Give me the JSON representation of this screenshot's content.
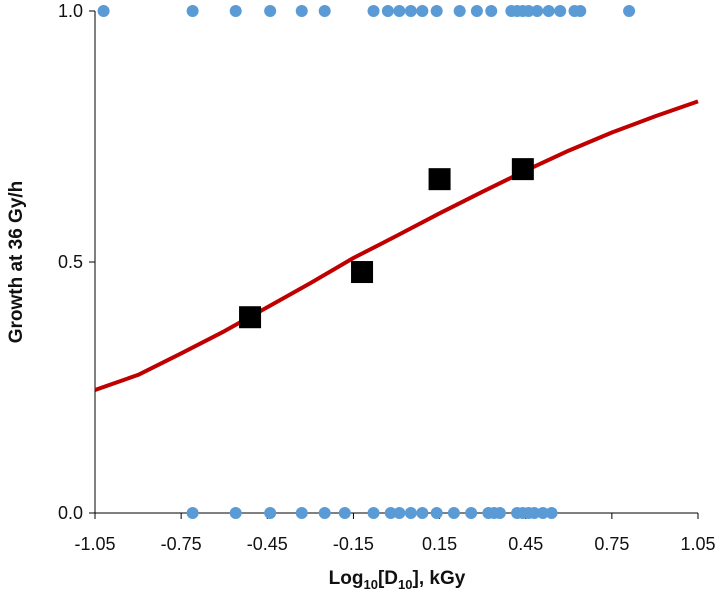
{
  "chart_data": {
    "type": "scatter",
    "xlabel": {
      "main": "Log",
      "sub1": "10",
      "mid": "[D",
      "sub2": "10",
      "end": "], kGy"
    },
    "ylabel": "Growth at 36 Gy/h",
    "xlim": [
      -1.05,
      1.05
    ],
    "ylim": [
      0.0,
      1.0
    ],
    "xticks": [
      "-1.05",
      "-0.75",
      "-0.45",
      "-0.15",
      "0.15",
      "0.45",
      "0.75",
      "1.05"
    ],
    "yticks": [
      "0.0",
      "0.5",
      "1.0"
    ],
    "grid": false,
    "series": [
      {
        "kind": "binary-points",
        "color": "#5b9bd5",
        "points": [
          [
            -1.02,
            1
          ],
          [
            -0.71,
            1
          ],
          [
            -0.56,
            1
          ],
          [
            -0.44,
            1
          ],
          [
            -0.33,
            1
          ],
          [
            -0.25,
            1
          ],
          [
            -0.08,
            1
          ],
          [
            -0.03,
            1
          ],
          [
            0.01,
            1
          ],
          [
            0.05,
            1
          ],
          [
            0.09,
            1
          ],
          [
            0.14,
            1
          ],
          [
            0.22,
            1
          ],
          [
            0.28,
            1
          ],
          [
            0.33,
            1
          ],
          [
            0.4,
            1
          ],
          [
            0.42,
            1
          ],
          [
            0.44,
            1
          ],
          [
            0.46,
            1
          ],
          [
            0.49,
            1
          ],
          [
            0.53,
            1
          ],
          [
            0.57,
            1
          ],
          [
            0.62,
            1
          ],
          [
            0.64,
            1
          ],
          [
            0.81,
            1
          ],
          [
            -0.71,
            0
          ],
          [
            -0.56,
            0
          ],
          [
            -0.44,
            0
          ],
          [
            -0.33,
            0
          ],
          [
            -0.25,
            0
          ],
          [
            -0.18,
            0
          ],
          [
            -0.08,
            0
          ],
          [
            -0.02,
            0
          ],
          [
            0.01,
            0
          ],
          [
            0.05,
            0
          ],
          [
            0.09,
            0
          ],
          [
            0.14,
            0
          ],
          [
            0.2,
            0
          ],
          [
            0.26,
            0
          ],
          [
            0.32,
            0
          ],
          [
            0.34,
            0
          ],
          [
            0.36,
            0
          ],
          [
            0.42,
            0
          ],
          [
            0.44,
            0
          ],
          [
            0.46,
            0
          ],
          [
            0.48,
            0
          ],
          [
            0.51,
            0
          ],
          [
            0.54,
            0
          ]
        ]
      },
      {
        "kind": "binned-means",
        "color": "#000000",
        "points": [
          [
            -0.51,
            0.39
          ],
          [
            -0.12,
            0.48
          ],
          [
            0.15,
            0.665
          ],
          [
            0.44,
            0.685
          ]
        ]
      },
      {
        "kind": "fit-curve",
        "color": "#c00000",
        "points": [
          [
            -1.05,
            0.245
          ],
          [
            -0.9,
            0.275
          ],
          [
            -0.75,
            0.318
          ],
          [
            -0.6,
            0.362
          ],
          [
            -0.45,
            0.41
          ],
          [
            -0.3,
            0.458
          ],
          [
            -0.15,
            0.508
          ],
          [
            0.0,
            0.552
          ],
          [
            0.15,
            0.597
          ],
          [
            0.3,
            0.64
          ],
          [
            0.45,
            0.682
          ],
          [
            0.6,
            0.722
          ],
          [
            0.75,
            0.758
          ],
          [
            0.9,
            0.79
          ],
          [
            1.05,
            0.82
          ]
        ]
      }
    ]
  }
}
